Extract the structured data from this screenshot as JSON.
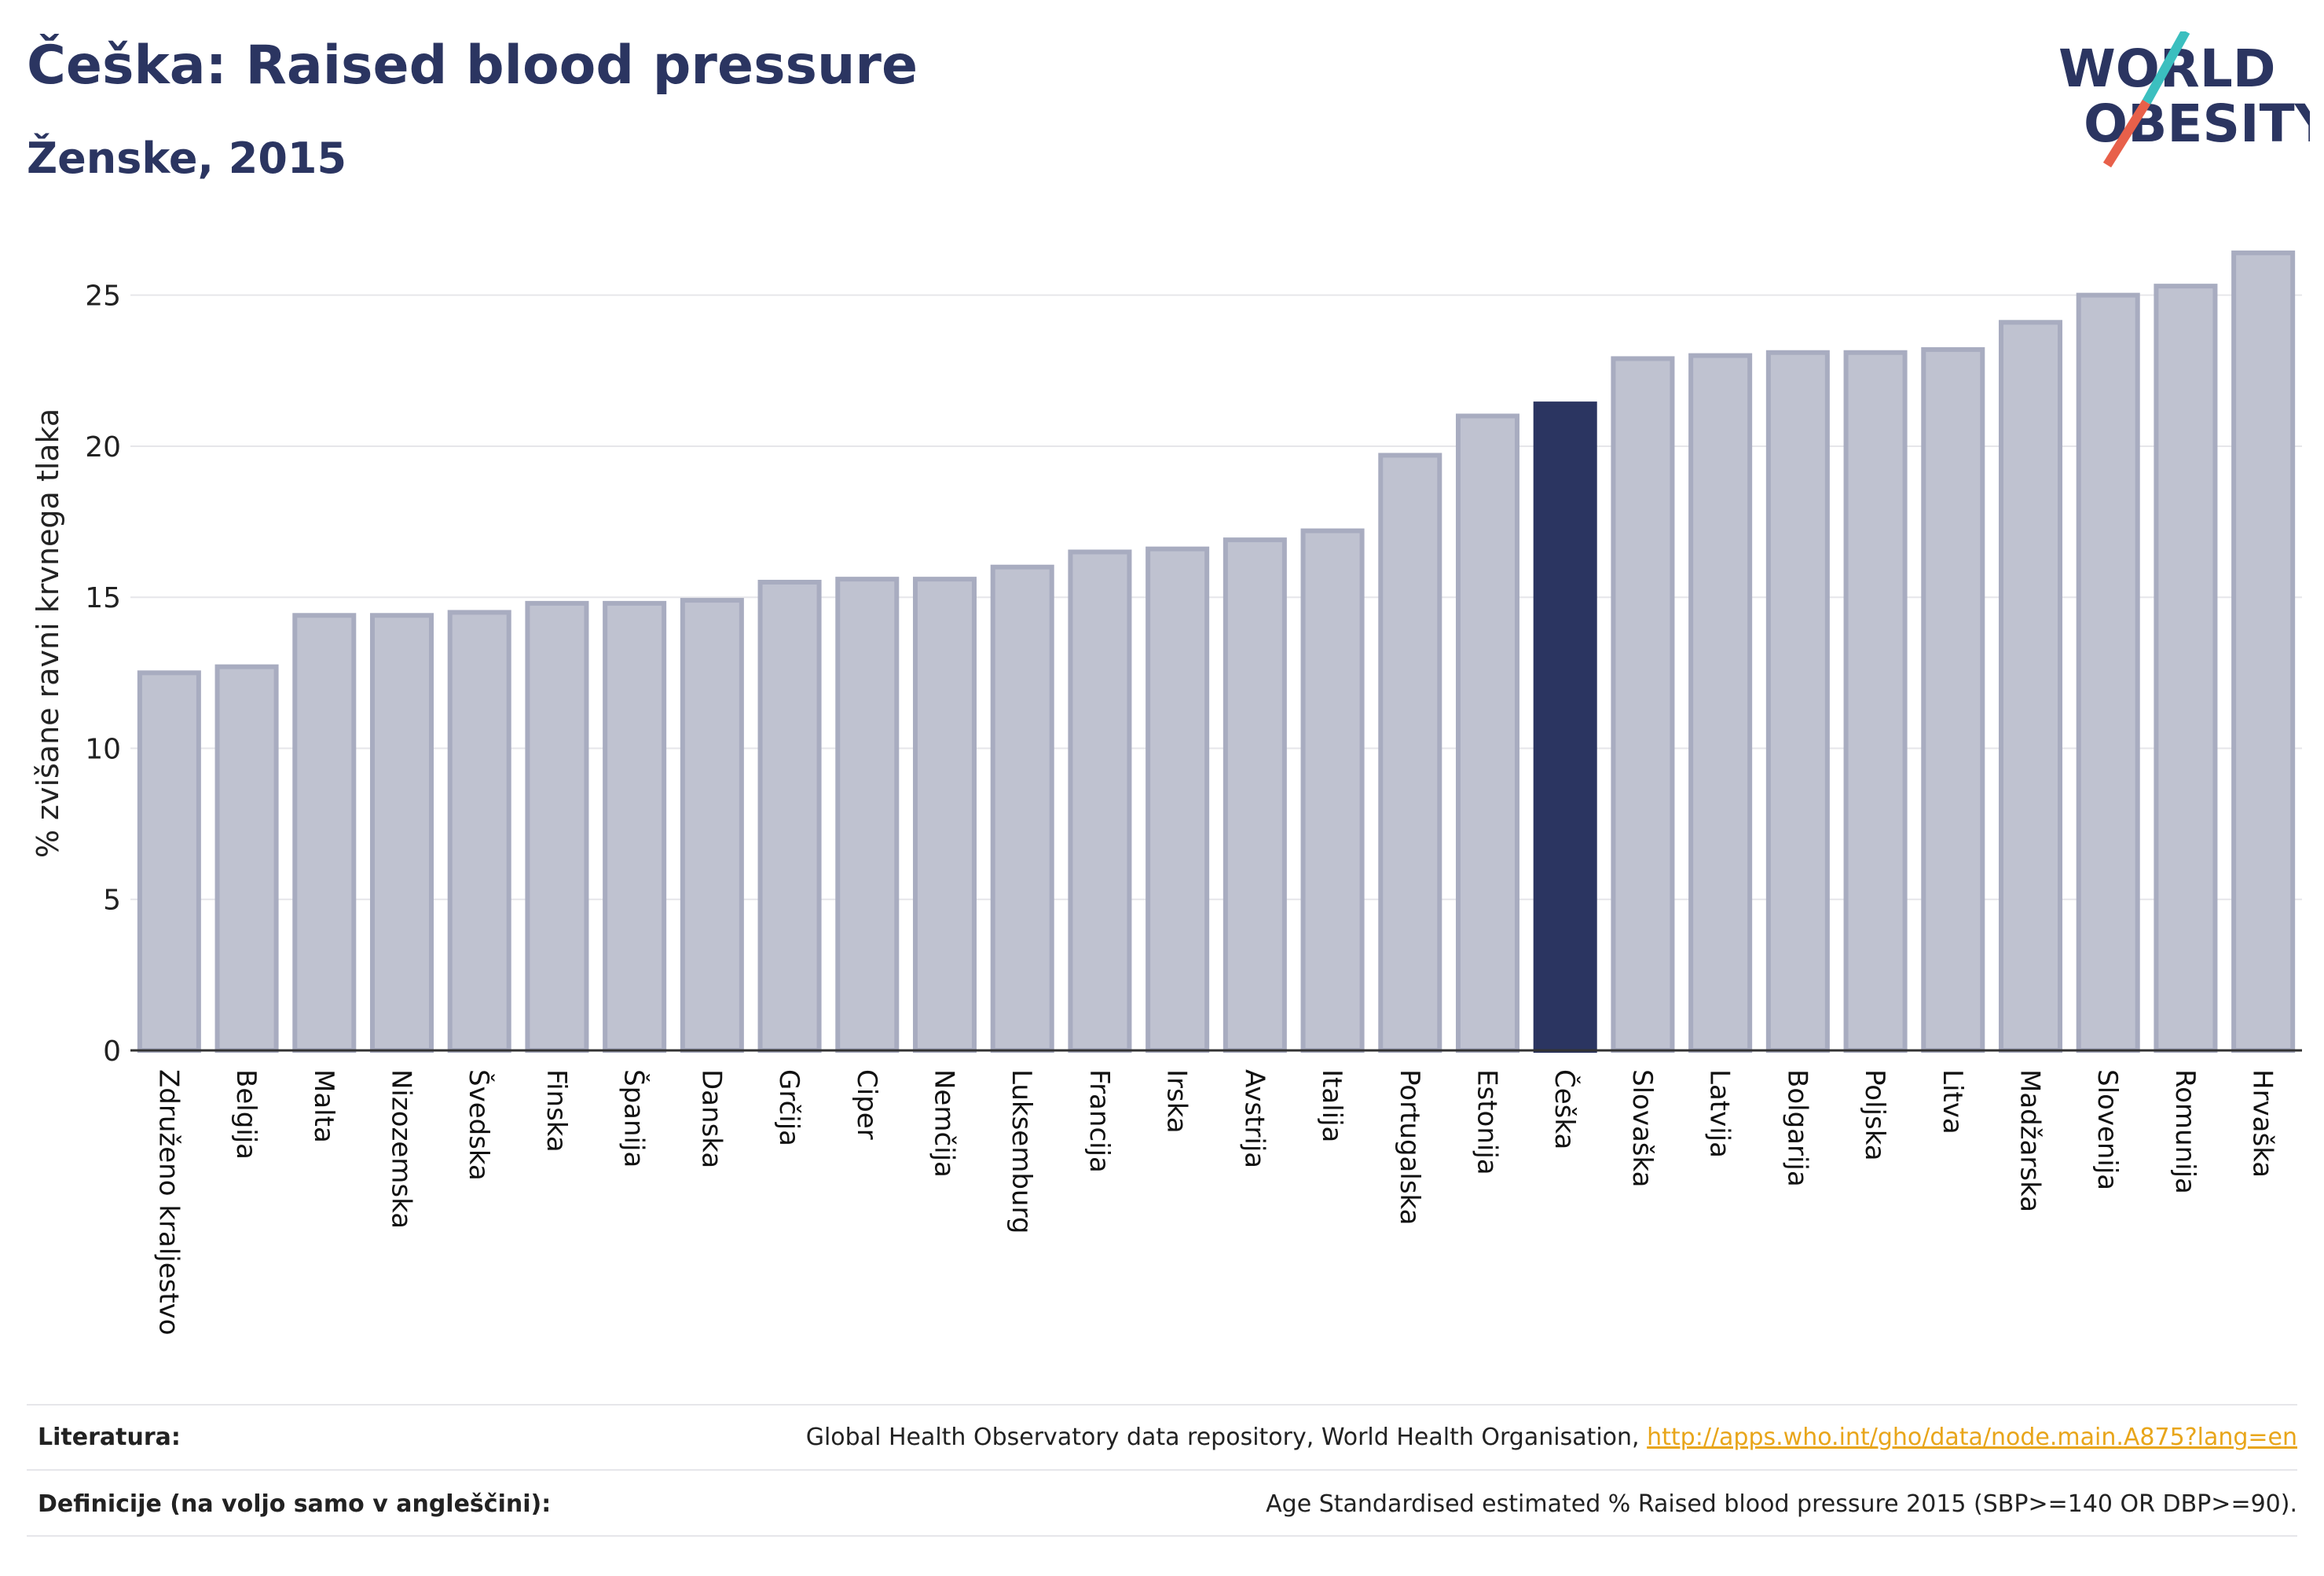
{
  "header": {
    "title": "Češka: Raised blood pressure",
    "subtitle": "Ženske, 2015"
  },
  "logo": {
    "line1": "WORLD",
    "line2": "OBESITY",
    "accent_colors": [
      "#3bbfbf",
      "#e8604a"
    ]
  },
  "colors": {
    "highlight": "#2b3561",
    "bar_fill": "#bfc2d0",
    "bar_stroke": "#a8acc0",
    "grid": "#e6e6ea"
  },
  "chart_data": {
    "type": "bar",
    "title": "Češka: Raised blood pressure",
    "subtitle": "Ženske, 2015",
    "ylabel": "% zvišane ravni krvnega tlaka",
    "xlabel": "",
    "ylim": [
      0,
      26.5
    ],
    "yticks": [
      0,
      5,
      10,
      15,
      20,
      25
    ],
    "grid": true,
    "highlight": "Češka",
    "categories": [
      "Združeno kraljestvo",
      "Belgija",
      "Malta",
      "Nizozemska",
      "Švedska",
      "Finska",
      "Španija",
      "Danska",
      "Grčija",
      "Ciper",
      "Nemčija",
      "Luksemburg",
      "Francija",
      "Irska",
      "Avstrija",
      "Italija",
      "Portugalska",
      "Estonija",
      "Češka",
      "Slovaška",
      "Latvija",
      "Bolgarija",
      "Poljska",
      "Litva",
      "Madžarska",
      "Slovenija",
      "Romunija",
      "Hrvaška"
    ],
    "values": [
      12.5,
      12.7,
      14.4,
      14.4,
      14.5,
      14.8,
      14.8,
      14.9,
      15.5,
      15.6,
      15.6,
      16.0,
      16.5,
      16.6,
      16.9,
      17.2,
      19.7,
      21.0,
      21.4,
      22.9,
      23.0,
      23.1,
      23.1,
      23.2,
      24.1,
      25.0,
      25.3,
      26.4
    ]
  },
  "footer": {
    "literature_label": "Literatura:",
    "literature_text": "Global Health Observatory data repository, World Health Organisation,",
    "literature_link": "http://apps.who.int/gho/data/node.main.A875?lang=en",
    "definitions_label": "Definicije (na voljo samo v angleščini):",
    "definitions_text": "Age Standardised estimated % Raised blood pressure 2015 (SBP>=140 OR DBP>=90)."
  }
}
